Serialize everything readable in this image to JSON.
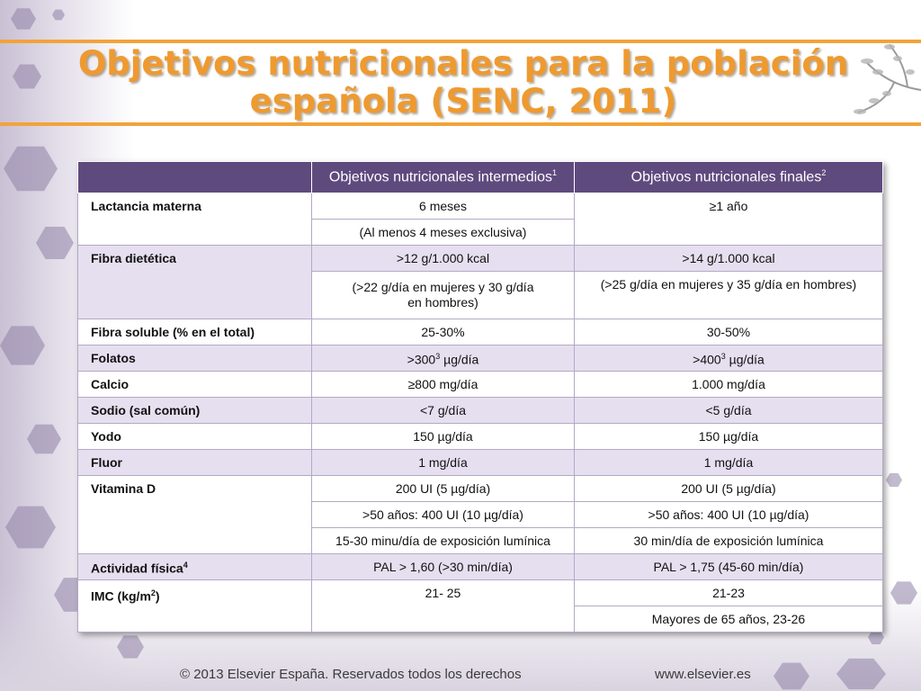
{
  "title": {
    "line1": "Objetivos nutricionales para la población",
    "line2": "española (SENC, 2011)"
  },
  "table": {
    "headers": {
      "col1": "",
      "col2": "Objetivos nutricionales intermedios",
      "col2_sup": "1",
      "col3": "Objetivos nutricionales finales",
      "col3_sup": "2"
    },
    "rows": {
      "lactancia": {
        "label": "Lactancia materna",
        "int1": "6 meses",
        "int2": "(Al menos 4 meses exclusiva)",
        "fin": "≥1 año"
      },
      "fibra": {
        "label": "Fibra dietética",
        "int1": ">12 g/1.000 kcal",
        "int2a": "(>22 g/día en mujeres y 30 g/día",
        "int2b": "en hombres)",
        "fin1": ">14 g/1.000 kcal",
        "fin2": "(>25 g/día en mujeres y 35 g/día en hombres)"
      },
      "fibra_soluble": {
        "label": "Fibra soluble (% en el total)",
        "int": "25-30%",
        "fin": "30-50%"
      },
      "folatos": {
        "label": "Folatos",
        "int_pre": ">300",
        "int_sup": "3",
        "int_post": " µg/día",
        "fin_pre": ">400",
        "fin_sup": "3",
        "fin_post": " µg/día"
      },
      "calcio": {
        "label": "Calcio",
        "int": "≥800 mg/día",
        "fin": "1.000 mg/día"
      },
      "sodio": {
        "label": "Sodio (sal común)",
        "int": "<7 g/día",
        "fin": "<5 g/día"
      },
      "yodo": {
        "label": "Yodo",
        "int": "150 µg/día",
        "fin": "150 µg/día"
      },
      "fluor": {
        "label": "Fluor",
        "int": "1 mg/día",
        "fin": "1 mg/día"
      },
      "vitamina_d": {
        "label": "Vitamina D",
        "int1": "200 UI (5 µg/día)",
        "fin1": "200 UI (5 µg/día)",
        "int2": ">50 años: 400 UI (10 µg/día)",
        "fin2": ">50 años: 400 UI (10 µg/día)",
        "int3": "15-30 minu/día de exposición lumínica",
        "fin3": "30 min/día de exposición lumínica"
      },
      "actividad": {
        "label": "Actividad física",
        "label_sup": "4",
        "int": "PAL > 1,60 (>30 min/día)",
        "fin": "PAL > 1,75 (45-60 min/día)"
      },
      "imc": {
        "label_pre": "IMC (kg/m",
        "label_sup": "2",
        "label_post": ")",
        "int": "21- 25",
        "fin1": "21-23",
        "fin2": "Mayores de 65 años, 23-26"
      }
    }
  },
  "footer": {
    "copyright": "© 2013 Elsevier España. Reservados todos los derechos",
    "url": "www.elsevier.es"
  },
  "colors": {
    "title_orange": "#ee9a30",
    "header_purple": "#5f4a7e",
    "row_lavender": "#e6dff0",
    "accent_line": "#f2a33a"
  }
}
